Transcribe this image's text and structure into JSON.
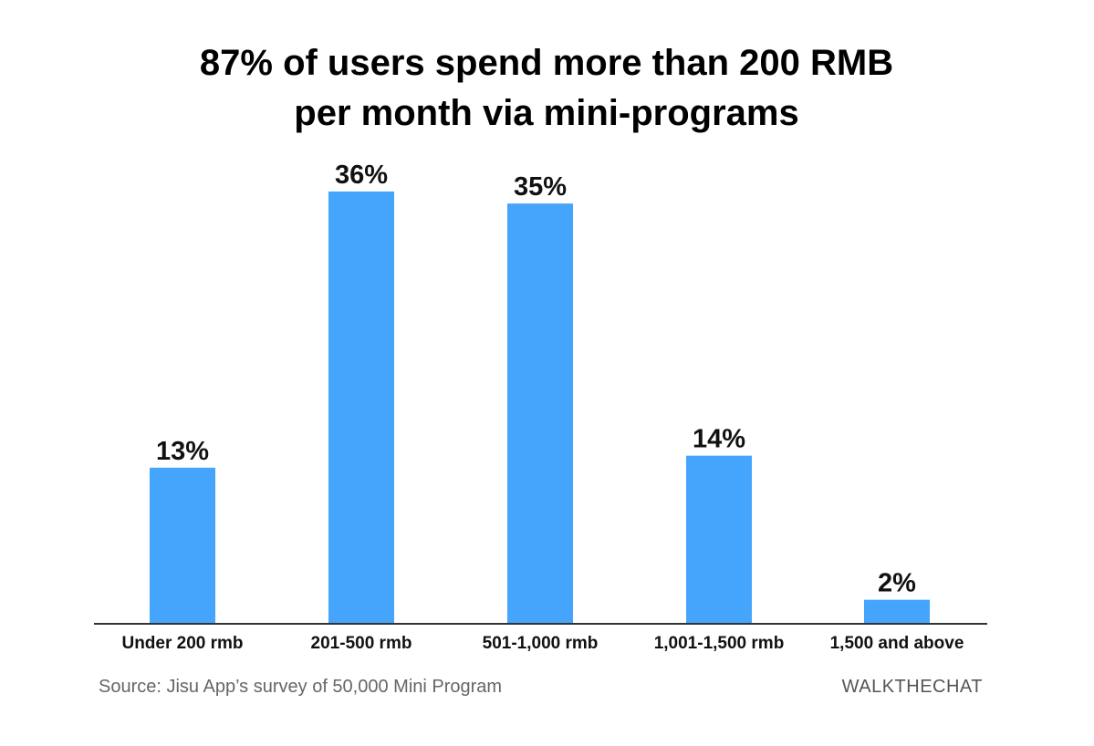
{
  "chart_data": {
    "type": "bar",
    "title_lines": [
      "87% of users spend more than 200 RMB",
      "per month via mini-programs"
    ],
    "categories": [
      "Under 200 rmb",
      "201-500 rmb",
      "501-1,000 rmb",
      "1,001-1,500 rmb",
      "1,500 and above"
    ],
    "values": [
      13,
      36,
      35,
      14,
      2
    ],
    "data_labels": [
      "13%",
      "36%",
      "35%",
      "14%",
      "2%"
    ],
    "xlabel": "",
    "ylabel": "",
    "ylim": [
      0,
      36
    ],
    "grid": false,
    "legend": "none",
    "bar_color": "#45a4fb",
    "axis_color": "#333333"
  },
  "footer": {
    "source": "Source: Jisu App’s survey of 50,000 Mini Program",
    "brand": "WALKTHECHAT"
  }
}
